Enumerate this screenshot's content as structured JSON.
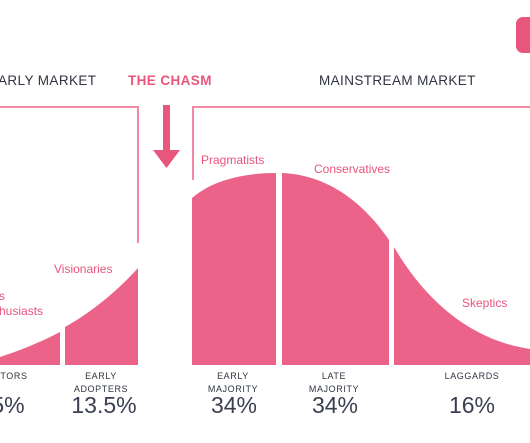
{
  "colors": {
    "accent": "#e8557d",
    "text": "#2f3440",
    "frame": "#f28aa6"
  },
  "headers": {
    "early_market": "ARLY MARKET",
    "chasm": "THE CHASM",
    "mainstream_market": "MAINSTREAM MARKET"
  },
  "curve_labels": {
    "pragmatists": "Pragmatists",
    "conservatives": "Conservatives",
    "visionaries": "Visionaries",
    "enthusiasts_top": "s",
    "enthusiasts": "husiasts",
    "skeptics": "Skeptics"
  },
  "segments": [
    {
      "label": "TORS",
      "share": "5%"
    },
    {
      "label": "EARLY\nADOPTERS",
      "share": "13.5%"
    },
    {
      "label": "EARLY\nMAJORITY",
      "share": "34%"
    },
    {
      "label": "LATE\nMAJORITY",
      "share": "34%"
    },
    {
      "label": "LAGGARDS",
      "share": "16%"
    }
  ]
}
